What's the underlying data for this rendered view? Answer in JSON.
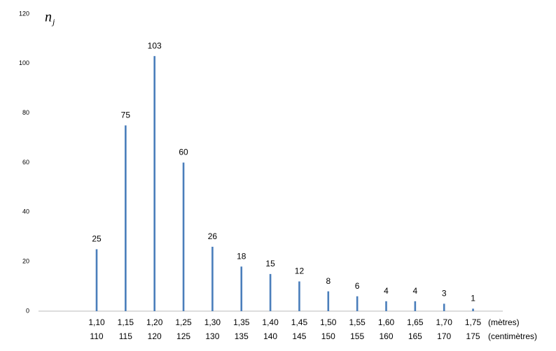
{
  "chart_data": {
    "type": "bar",
    "ylabel": "n",
    "ylabel_subscript": "j",
    "categories": [
      "1,10",
      "1,15",
      "1,20",
      "1,25",
      "1,30",
      "1,35",
      "1,40",
      "1,45",
      "1,50",
      "1,55",
      "1,60",
      "1,65",
      "1,70",
      "1,75"
    ],
    "categories_secondary": [
      "110",
      "115",
      "120",
      "125",
      "130",
      "135",
      "140",
      "145",
      "150",
      "155",
      "160",
      "165",
      "170",
      "175"
    ],
    "x_unit_labels": [
      "(mètres)",
      "(centimètres)"
    ],
    "values": [
      25,
      75,
      103,
      60,
      26,
      18,
      15,
      12,
      8,
      6,
      4,
      4,
      3,
      1
    ],
    "color": "#4a7ebb",
    "ylim": [
      0,
      120
    ],
    "yticks": [
      0,
      20,
      40,
      60,
      80,
      100,
      120
    ],
    "grid": false
  }
}
